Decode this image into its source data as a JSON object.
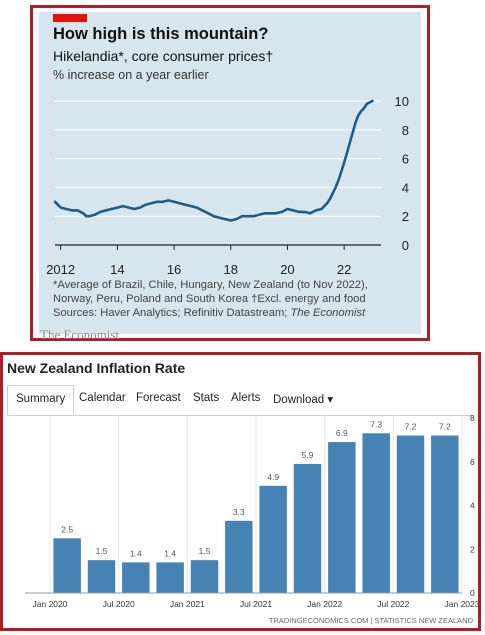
{
  "economist": {
    "title": "How high is this mountain?",
    "subtitle": "Hikelandia*, core consumer prices†",
    "unit": "% increase on a year earlier",
    "footnote_1": "*Average of Brazil, Chile, Hungary, New Zealand (to Nov 2022),",
    "footnote_2": "Norway, Peru, Poland and South Korea   †Excl. energy and food",
    "source_prefix": "Sources: Haver Analytics; Refinitiv Datastream; ",
    "source_italic": "The Economist",
    "brand": "The Economist",
    "colors": {
      "line": "#1f5c8a",
      "background": "#d7e6ee",
      "tag": "#e3120b"
    }
  },
  "tradingeconomics": {
    "title": "New Zealand Inflation Rate",
    "tabs": [
      "Summary",
      "Calendar",
      "Forecast",
      "Stats",
      "Alerts",
      "Download ▾"
    ],
    "active_tab": "Summary",
    "source": "TRADINGECONOMICS.COM  |  STATISTICS NEW ZEALAND",
    "colors": {
      "bar": "#4682b4"
    }
  },
  "chart_data": [
    {
      "type": "line",
      "ylim": [
        0,
        10
      ],
      "yticks": [
        0,
        2,
        4,
        6,
        8,
        10
      ],
      "xticks": [
        "2012",
        "14",
        "16",
        "18",
        "20",
        "22"
      ],
      "xtick_values": [
        2012,
        2014,
        2016,
        2018,
        2020,
        2022
      ],
      "xlim": [
        2011.8,
        2023.3
      ],
      "grid": "horizontal",
      "series": [
        {
          "x": [
            2011.8,
            2011.9,
            2012.0,
            2012.2,
            2012.4,
            2012.6,
            2012.8,
            2012.9,
            2013.0,
            2013.2,
            2013.4,
            2013.6,
            2013.8,
            2014.0,
            2014.2,
            2014.4,
            2014.6,
            2014.8,
            2015.0,
            2015.2,
            2015.4,
            2015.6,
            2015.8,
            2016.0,
            2016.2,
            2016.4,
            2016.6,
            2016.8,
            2017.0,
            2017.2,
            2017.4,
            2017.6,
            2017.8,
            2018.0,
            2018.2,
            2018.4,
            2018.6,
            2018.8,
            2019.0,
            2019.2,
            2019.4,
            2019.6,
            2019.8,
            2020.0,
            2020.2,
            2020.4,
            2020.6,
            2020.8,
            2021.0,
            2021.2,
            2021.4,
            2021.5,
            2021.6,
            2021.7,
            2021.8,
            2021.9,
            2022.0,
            2022.1,
            2022.2,
            2022.3,
            2022.4,
            2022.5,
            2022.6,
            2022.7,
            2022.8,
            2022.9,
            2023.0
          ],
          "y": [
            3.0,
            2.8,
            2.6,
            2.5,
            2.4,
            2.4,
            2.2,
            2.0,
            2.0,
            2.1,
            2.3,
            2.4,
            2.5,
            2.6,
            2.7,
            2.6,
            2.5,
            2.6,
            2.8,
            2.9,
            3.0,
            3.0,
            3.1,
            3.0,
            2.9,
            2.8,
            2.7,
            2.6,
            2.4,
            2.2,
            2.0,
            1.9,
            1.8,
            1.7,
            1.8,
            2.0,
            2.0,
            2.0,
            2.1,
            2.2,
            2.2,
            2.2,
            2.3,
            2.5,
            2.4,
            2.3,
            2.3,
            2.2,
            2.4,
            2.5,
            2.9,
            3.2,
            3.6,
            4.0,
            4.5,
            5.1,
            5.7,
            6.4,
            7.1,
            7.8,
            8.5,
            9.0,
            9.3,
            9.5,
            9.8,
            9.9,
            10.0
          ]
        }
      ]
    },
    {
      "type": "bar",
      "categories": [
        "2020Q1",
        "2020Q2",
        "2020Q3",
        "2020Q4",
        "2021Q1",
        "2021Q2",
        "2021Q3",
        "2021Q4",
        "2022Q1",
        "2022Q2",
        "2022Q3",
        "2022Q4"
      ],
      "values": [
        2.5,
        1.5,
        1.4,
        1.4,
        1.5,
        3.3,
        4.9,
        5.9,
        6.9,
        7.3,
        7.2,
        7.2
      ],
      "value_labels": [
        "2.5",
        "1.5",
        "1.4",
        "1.4",
        "1.5",
        "3.3",
        "4.9",
        "5.9",
        "6.9",
        "7.3",
        "7.2",
        "7.2"
      ],
      "xticks": [
        "Jan 2020",
        "Jul 2020",
        "Jan 2021",
        "Jul 2021",
        "Jan 2022",
        "Jul 2022",
        "Jan 2023"
      ],
      "yticks": [
        "0",
        "2",
        "4",
        "6",
        "8"
      ],
      "ylim": [
        0,
        8
      ],
      "grid": "vertical",
      "legend": "none"
    }
  ]
}
